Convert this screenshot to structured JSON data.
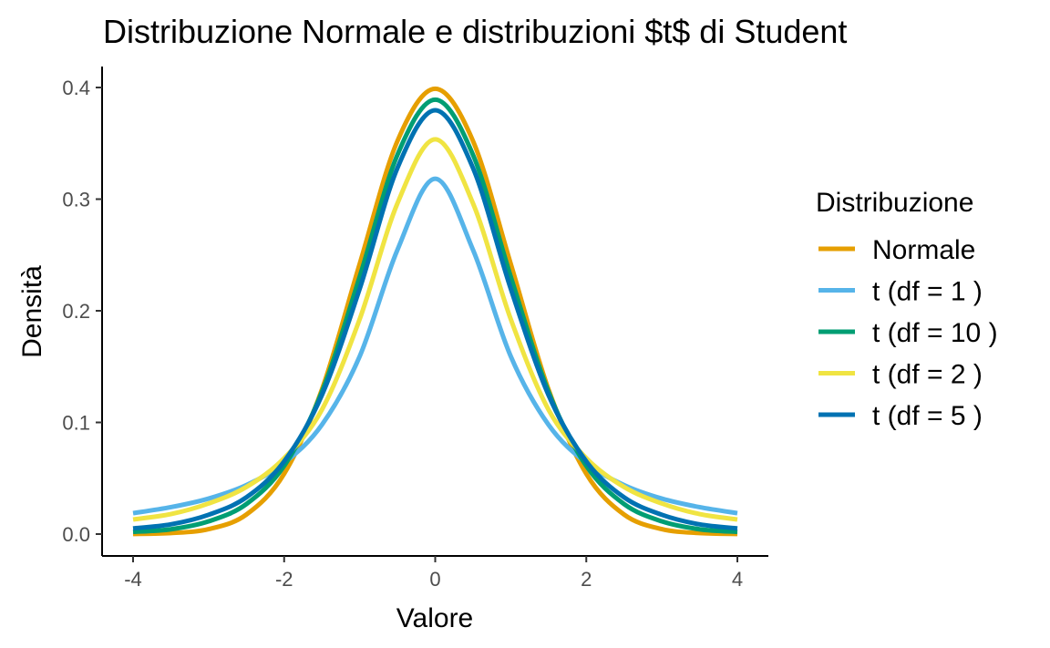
{
  "chart_data": {
    "type": "line",
    "title": "Distribuzione Normale e distribuzioni $t$ di Student",
    "xlabel": "Valore",
    "ylabel": "Densità",
    "xlim": [
      -4,
      4
    ],
    "ylim": [
      0,
      0.4
    ],
    "x_ticks": [
      "-4",
      "-2",
      "0",
      "2",
      "4"
    ],
    "y_ticks": [
      "0.0",
      "0.1",
      "0.2",
      "0.3",
      "0.4"
    ],
    "grid": false,
    "legend": {
      "title": "Distribuzione",
      "placement": "right"
    },
    "x": [
      -4,
      -3.5,
      -3,
      -2.5,
      -2,
      -1.5,
      -1,
      -0.5,
      0,
      0.5,
      1,
      1.5,
      2,
      2.5,
      3,
      3.5,
      4
    ],
    "series": [
      {
        "name": "Normale",
        "color": "#E69F00",
        "values": [
          0.0001,
          0.0009,
          0.0044,
          0.0175,
          0.054,
          0.1295,
          0.242,
          0.3521,
          0.3989,
          0.3521,
          0.242,
          0.1295,
          0.054,
          0.0175,
          0.0044,
          0.0009,
          0.0001
        ]
      },
      {
        "name": "t (df = 1 )",
        "color": "#56B4E9",
        "values": [
          0.0187,
          0.0241,
          0.0318,
          0.0439,
          0.0637,
          0.0979,
          0.1592,
          0.2546,
          0.3183,
          0.2546,
          0.1592,
          0.0979,
          0.0637,
          0.0439,
          0.0318,
          0.0241,
          0.0187
        ]
      },
      {
        "name": "t (df = 10 )",
        "color": "#009E73",
        "values": [
          0.002,
          0.0043,
          0.0114,
          0.0269,
          0.0611,
          0.1274,
          0.2304,
          0.3397,
          0.3891,
          0.3397,
          0.2304,
          0.1274,
          0.0611,
          0.0269,
          0.0114,
          0.0043,
          0.002
        ]
      },
      {
        "name": "t (df = 2 )",
        "color": "#F0E442",
        "values": [
          0.0131,
          0.0179,
          0.0274,
          0.0422,
          0.068,
          0.1114,
          0.1925,
          0.2962,
          0.3536,
          0.2962,
          0.1925,
          0.1114,
          0.068,
          0.0422,
          0.0274,
          0.0179,
          0.0131
        ]
      },
      {
        "name": "t (df = 5 )",
        "color": "#0072B2",
        "values": [
          0.0051,
          0.0087,
          0.0173,
          0.0329,
          0.0651,
          0.1245,
          0.2197,
          0.3279,
          0.3796,
          0.3279,
          0.2197,
          0.1245,
          0.0651,
          0.0329,
          0.0173,
          0.0087,
          0.0051
        ]
      }
    ]
  }
}
